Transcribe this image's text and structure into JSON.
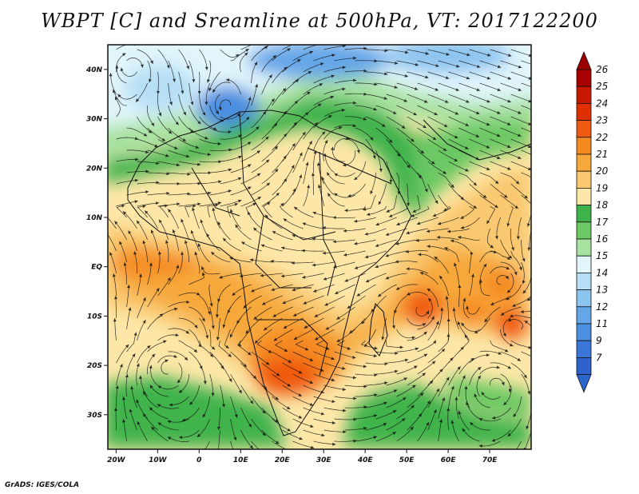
{
  "title": "WBPT [C] and Sreamline at 500hPa, VT: 2017122200",
  "footer": "GrADS: IGES/COLA",
  "map": {
    "lon_range": [
      -22,
      80
    ],
    "lat_range": [
      -37,
      45
    ],
    "lon_ticks": [
      "20W",
      "10W",
      "0",
      "10E",
      "20E",
      "30E",
      "40E",
      "50E",
      "60E",
      "70E"
    ],
    "lat_ticks": [
      "40N",
      "30N",
      "20N",
      "10N",
      "EQ",
      "10S",
      "20S",
      "30S"
    ],
    "field": "WBPT [C]",
    "overlay": "streamlines at 500hPa"
  },
  "colorbar": {
    "labels": [
      "26",
      "25",
      "24",
      "23",
      "22",
      "21",
      "20",
      "19",
      "18",
      "17",
      "16",
      "15",
      "14",
      "13",
      "12",
      "11",
      "9",
      "7"
    ],
    "colors": [
      "#a80000",
      "#c81800",
      "#e03000",
      "#f05a10",
      "#f58a20",
      "#f7a83a",
      "#f9c870",
      "#fde7a8",
      "#3fb34b",
      "#6cc864",
      "#a8e2a0",
      "#e1f5fb",
      "#b6dff5",
      "#8cc4f0",
      "#65a6e8",
      "#4c8ee0",
      "#3a77d8",
      "#2e62cc"
    ],
    "top_arrow_color": "#9a0000",
    "bottom_arrow_color": "#2a66cc"
  }
}
